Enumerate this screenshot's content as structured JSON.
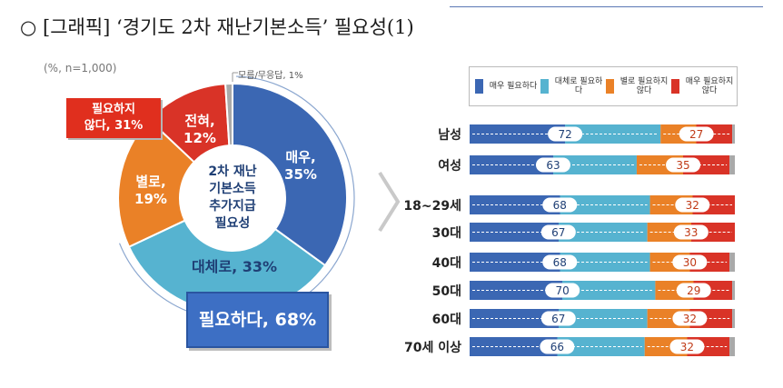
{
  "title": "○ [그래픽] ‘경기도 2차 재난기본소득’ 필요성(1)",
  "sample_note": "(%, n=1,000)",
  "donut": {
    "center_lines": [
      "2차 재난",
      "기본소득",
      "추가지급",
      "필요성"
    ],
    "slices": [
      {
        "label": "매우,",
        "value": 35,
        "text": "35%",
        "color": "#3b67b3"
      },
      {
        "label": "대체로, 33%",
        "value": 33,
        "text": "",
        "color": "#56b3d0"
      },
      {
        "label": "별로,",
        "value": 19,
        "text": "19%",
        "color": "#ea8127"
      },
      {
        "label": "전혀,",
        "value": 12,
        "text": "12%",
        "color": "#d93327"
      },
      {
        "label": "",
        "value": 1,
        "text": "",
        "color": "#a9a9a9"
      }
    ],
    "unknown_note": "모름/무응답, 1%",
    "negative_callout": [
      "필요하지",
      "않다, 31%"
    ],
    "positive_callout": "필요하다, 68%"
  },
  "chart_data": {
    "type": "bar",
    "stacked": true,
    "orientation": "horizontal",
    "scale": "percent",
    "categories": [
      "남성",
      "여성",
      "18~29세",
      "30대",
      "40대",
      "50대",
      "60대",
      "70세 이상"
    ],
    "legend_placement": "top",
    "series": [
      {
        "name": "매우 필요하다",
        "color": "#3b67b3"
      },
      {
        "name": "대체로 필요하다",
        "color": "#56b3d0"
      },
      {
        "name": "별로 필요하지 않다",
        "color": "#ea8127"
      },
      {
        "name": "매우 필요하지 않다",
        "color": "#d93327"
      }
    ],
    "rows": [
      {
        "positive": 72,
        "negative": 27
      },
      {
        "positive": 63,
        "negative": 35
      },
      {
        "positive": 68,
        "negative": 32
      },
      {
        "positive": 67,
        "negative": 33
      },
      {
        "positive": 68,
        "negative": 30
      },
      {
        "positive": 70,
        "negative": 29
      },
      {
        "positive": 67,
        "negative": 32
      },
      {
        "positive": 66,
        "negative": 32
      }
    ]
  },
  "colors": {
    "positive_callout": "#3d6fc4",
    "negative_callout": "#e02f1e",
    "unknown": "#a9a9a9"
  }
}
